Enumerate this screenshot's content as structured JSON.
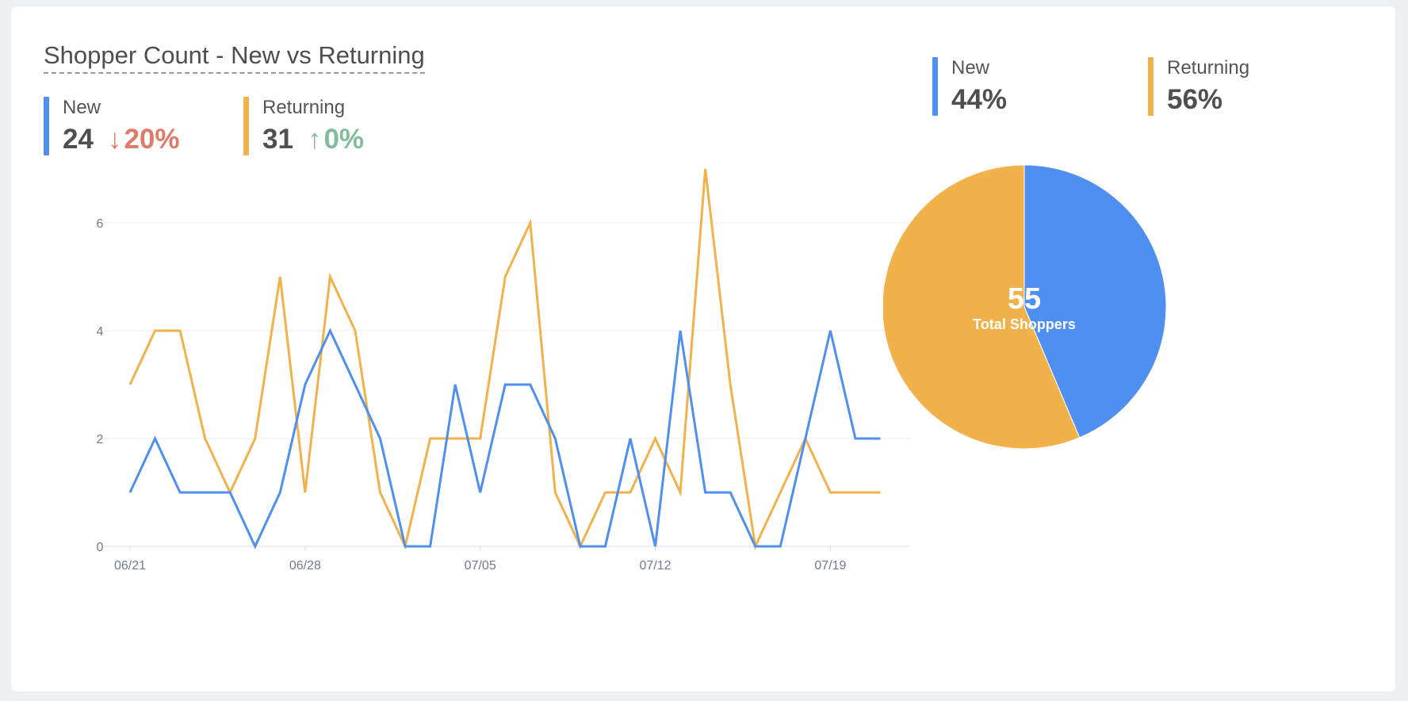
{
  "title": "Shopper Count - New vs Returning",
  "colors": {
    "new": "#4f8fef",
    "returning": "#f2b24b",
    "down": "#e07a68",
    "up": "#82bc99",
    "grid": "#eeeeee",
    "tick": "#6f7b8d"
  },
  "summary": {
    "new": {
      "label": "New",
      "count": "24",
      "arrow": "↓",
      "change": "20%"
    },
    "returning": {
      "label": "Returning",
      "count": "31",
      "arrow": "↑",
      "change": "0%"
    }
  },
  "pie_legend": {
    "new": {
      "label": "New",
      "percent": "44%"
    },
    "returning": {
      "label": "Returning",
      "percent": "56%"
    }
  },
  "pie_center": {
    "value": "55",
    "label": "Total Shoppers"
  },
  "chart_data": [
    {
      "type": "line",
      "x": [
        "06/21",
        "06/22",
        "06/23",
        "06/24",
        "06/25",
        "06/26",
        "06/27",
        "06/28",
        "06/29",
        "06/30",
        "07/01",
        "07/02",
        "07/03",
        "07/04",
        "07/05",
        "07/06",
        "07/07",
        "07/08",
        "07/09",
        "07/10",
        "07/11",
        "07/12",
        "07/13",
        "07/14",
        "07/15",
        "07/16",
        "07/17",
        "07/18",
        "07/19",
        "07/20",
        "07/21"
      ],
      "xticks": [
        "06/21",
        "06/28",
        "07/05",
        "07/12",
        "07/19"
      ],
      "yticks": [
        0,
        2,
        4,
        6
      ],
      "ylim": [
        0,
        7.2
      ],
      "grid": true,
      "series": [
        {
          "name": "New",
          "color": "#4f8fef",
          "values": [
            1,
            2,
            1,
            1,
            1,
            0,
            1,
            3,
            4,
            3,
            2,
            0,
            0,
            3,
            1,
            3,
            3,
            2,
            0,
            0,
            2,
            0,
            4,
            1,
            1,
            0,
            0,
            2,
            4,
            2,
            2
          ]
        },
        {
          "name": "Returning",
          "color": "#f2b24b",
          "values": [
            3,
            4,
            4,
            2,
            1,
            2,
            5,
            1,
            5,
            4,
            1,
            0,
            2,
            2,
            2,
            5,
            6,
            1,
            0,
            1,
            1,
            2,
            1,
            7,
            3,
            0,
            1,
            2,
            1,
            1,
            1
          ]
        }
      ]
    },
    {
      "type": "pie",
      "labels": [
        "New",
        "Returning"
      ],
      "values": [
        24,
        31
      ],
      "colors": [
        "#4f8fef",
        "#f2b24b"
      ],
      "total": 55
    }
  ]
}
